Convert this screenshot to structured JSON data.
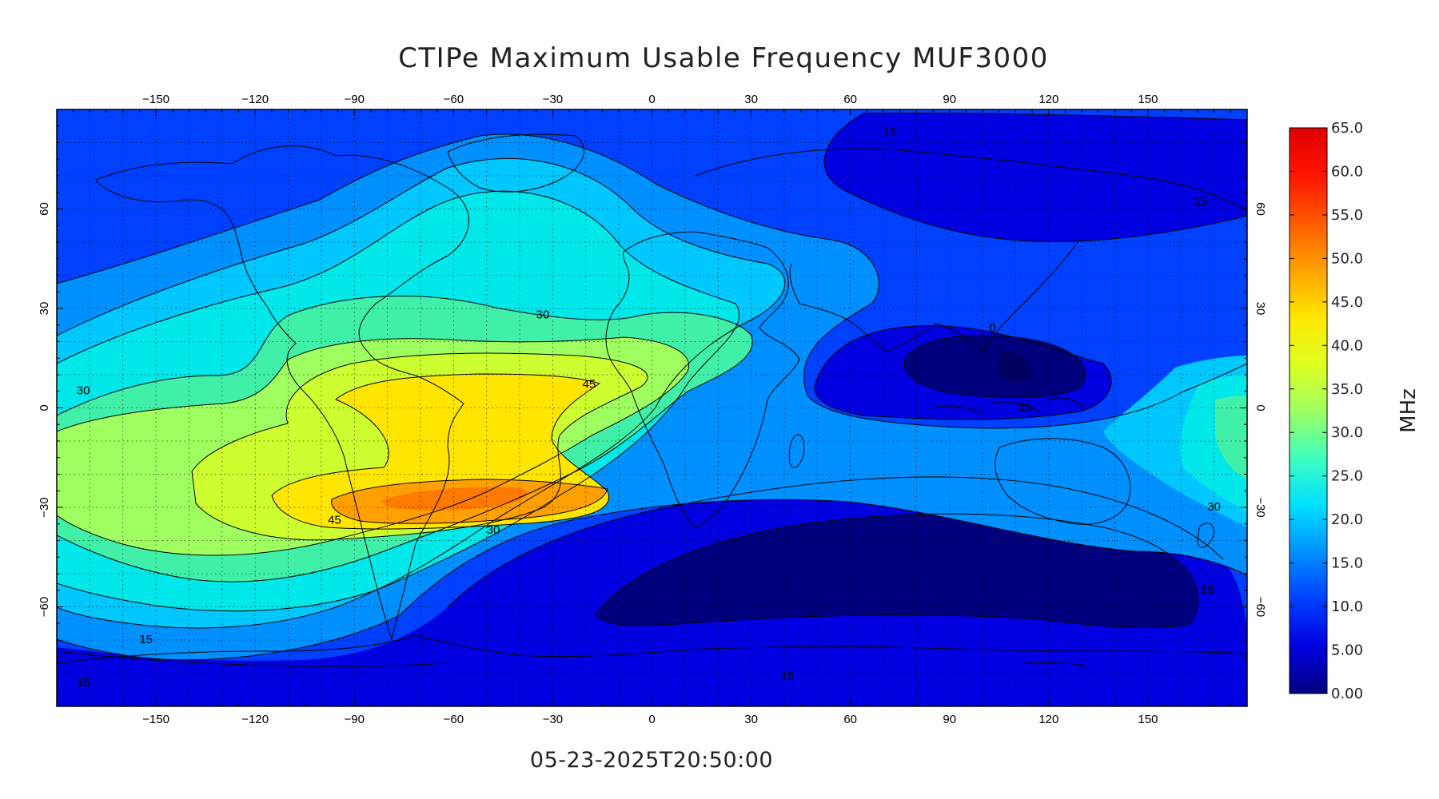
{
  "title": "CTIPe Maximum Usable Frequency MUF3000",
  "timestamp": "05-23-2025T20:50:00",
  "map": {
    "lon_ticks": [
      -150,
      -120,
      -90,
      -60,
      -30,
      0,
      30,
      60,
      90,
      120,
      150
    ],
    "lat_ticks": [
      60,
      30,
      0,
      -30,
      -60
    ],
    "lon_range": [
      -180,
      180
    ],
    "lat_range": [
      -90,
      90
    ],
    "grid": true,
    "contour_labels": [
      {
        "text": "15",
        "lon": 72,
        "lat": 83
      },
      {
        "text": "15",
        "lon": 166,
        "lat": 62
      },
      {
        "text": "30",
        "lon": -33,
        "lat": 28
      },
      {
        "text": "30",
        "lon": -172,
        "lat": 5
      },
      {
        "text": "45",
        "lon": -19,
        "lat": 7
      },
      {
        "text": "45",
        "lon": -96,
        "lat": -34
      },
      {
        "text": "30",
        "lon": -48,
        "lat": -37
      },
      {
        "text": "30",
        "lon": 170,
        "lat": -30
      },
      {
        "text": "15",
        "lon": 168,
        "lat": -55
      },
      {
        "text": "15",
        "lon": -153,
        "lat": -70
      },
      {
        "text": "15",
        "lon": -172,
        "lat": -83
      },
      {
        "text": "15",
        "lon": 41,
        "lat": -81
      },
      {
        "text": "15",
        "lon": 113,
        "lat": 0
      },
      {
        "text": "0",
        "lon": 103,
        "lat": 24
      }
    ]
  },
  "colorbar": {
    "unit": "MHz",
    "range": [
      0,
      65
    ],
    "tick_labels": [
      "65.0",
      "60.0",
      "55.0",
      "50.0",
      "45.0",
      "40.0",
      "35.0",
      "30.0",
      "25.0",
      "20.0",
      "15.0",
      "10.0",
      "5.00",
      "0.00"
    ],
    "stops": [
      "#00007f",
      "#0000e0",
      "#0040ff",
      "#0090ff",
      "#00e0ff",
      "#40ffbf",
      "#9fff60",
      "#e0ff20",
      "#ffe600",
      "#ffa000",
      "#ff5a00",
      "#ff1400",
      "#e00000"
    ]
  }
}
